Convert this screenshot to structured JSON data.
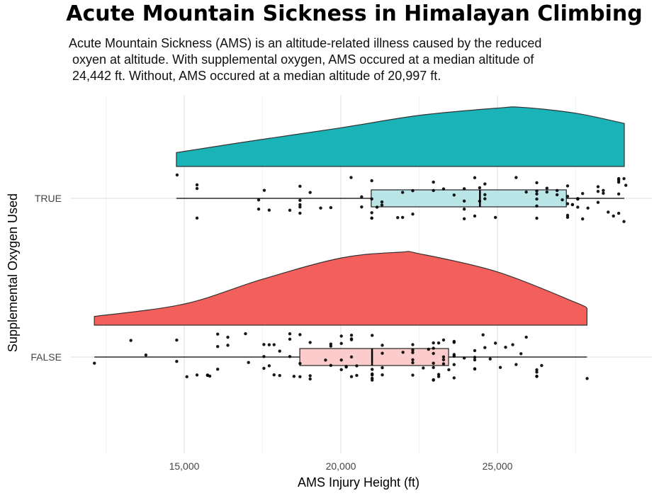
{
  "chart_data": {
    "type": "raincloud",
    "title": "Acute Mountain Sickness in Himalayan Climbing",
    "subtitle": [
      "Acute Mountain Sickness (AMS) is an altitude-related illness caused by the reduced",
      " oxyen at altitude. With supplemental oxygen, AMS occured at a median altitude of",
      " 24,442 ft. Without, AMS occured at a median altitude of 20,997 ft."
    ],
    "xlabel": "AMS Injury Height (ft)",
    "ylabel": "Supplemental Oxygen Used",
    "xlim": [
      11500,
      29800
    ],
    "xticks": [
      {
        "value": 15000,
        "label": "15,000"
      },
      {
        "value": 20000,
        "label": "20,000"
      },
      {
        "value": 25000,
        "label": "25,000"
      }
    ],
    "grid": true,
    "groups": [
      {
        "label": "TRUE",
        "color": "#1AB3B8",
        "box_fill": "#B9E5E7",
        "box": {
          "min": 14750,
          "q1": 20970,
          "median": 24442,
          "q3": 27200,
          "max": 29050
        },
        "density": [
          [
            14750,
            0.19
          ],
          [
            17000,
            0.34
          ],
          [
            20000,
            0.53
          ],
          [
            22500,
            0.7
          ],
          [
            25000,
            0.8
          ],
          [
            25800,
            0.81
          ],
          [
            27500,
            0.73
          ],
          [
            29050,
            0.59
          ]
        ],
        "points": [
          14772,
          15408,
          15408,
          15408,
          17376,
          17376,
          17556,
          17712,
          18372,
          18696,
          18696,
          18696,
          18696,
          18696,
          19020,
          19356,
          19680,
          20328,
          20664,
          20664,
          20988,
          20988,
          20988,
          20988,
          20988,
          21156,
          21312,
          21312,
          21816,
          21972,
          21972,
          22296,
          22296,
          22956,
          22956,
          23280,
          23616,
          23940,
          23940,
          23940,
          23940,
          24276,
          24276,
          24432,
          24432,
          24600,
          24600,
          24600,
          24936,
          25596,
          25920,
          26256,
          26256,
          26256,
          26256,
          26256,
          26256,
          26580,
          26580,
          26904,
          26904,
          27072,
          27240,
          27240,
          27240,
          27240,
          27240,
          27396,
          27396,
          27564,
          27564,
          27564,
          27720,
          27720,
          27888,
          28212,
          28212,
          28212,
          28380,
          28380,
          28536,
          28704,
          28872,
          28872,
          28872,
          28872,
          28872,
          29040,
          29040,
          29100
        ]
      },
      {
        "label": "FALSE",
        "color": "#F35F5B",
        "box_fill": "#FBCCCB",
        "box": {
          "min": 12130,
          "q1": 18690,
          "median": 20997,
          "q3": 23440,
          "max": 27860
        },
        "density": [
          [
            12130,
            0.12
          ],
          [
            15000,
            0.29
          ],
          [
            17500,
            0.63
          ],
          [
            20000,
            0.92
          ],
          [
            21900,
            1.0
          ],
          [
            22500,
            0.98
          ],
          [
            25000,
            0.73
          ],
          [
            27500,
            0.31
          ],
          [
            27860,
            0.23
          ]
        ],
        "points": [
          12132,
          13296,
          13776,
          14760,
          14760,
          15084,
          15408,
          15744,
          15744,
          15816,
          16068,
          16068,
          16068,
          16392,
          16392,
          16956,
          17052,
          17544,
          17544,
          17544,
          17712,
          17712,
          17868,
          17868,
          18048,
          18048,
          18372,
          18372,
          18372,
          18504,
          18696,
          18696,
          18696,
          19020,
          19020,
          19020,
          19512,
          19680,
          19680,
          19680,
          20016,
          20016,
          20016,
          20016,
          20172,
          20172,
          20340,
          20340,
          20340,
          20340,
          20340,
          20508,
          20508,
          21000,
          21000,
          21000,
          21000,
          21000,
          21000,
          21324,
          21324,
          21324,
          21324,
          21984,
          22296,
          22296,
          22296,
          22296,
          22296,
          22296,
          22632,
          22800,
          22956,
          22956,
          22956,
          22956,
          22956,
          22956,
          22956,
          23124,
          23124,
          23124,
          23280,
          23280,
          23280,
          23280,
          23448,
          23616,
          23616,
          23616,
          23616,
          23616,
          23616,
          23940,
          24276,
          24276,
          24276,
          24276,
          24276,
          24540,
          24600,
          24768,
          24936,
          25092,
          25260,
          25488,
          25596,
          25752,
          25920,
          26256,
          26256,
          26256,
          26256,
          26412,
          27864
        ]
      }
    ]
  }
}
